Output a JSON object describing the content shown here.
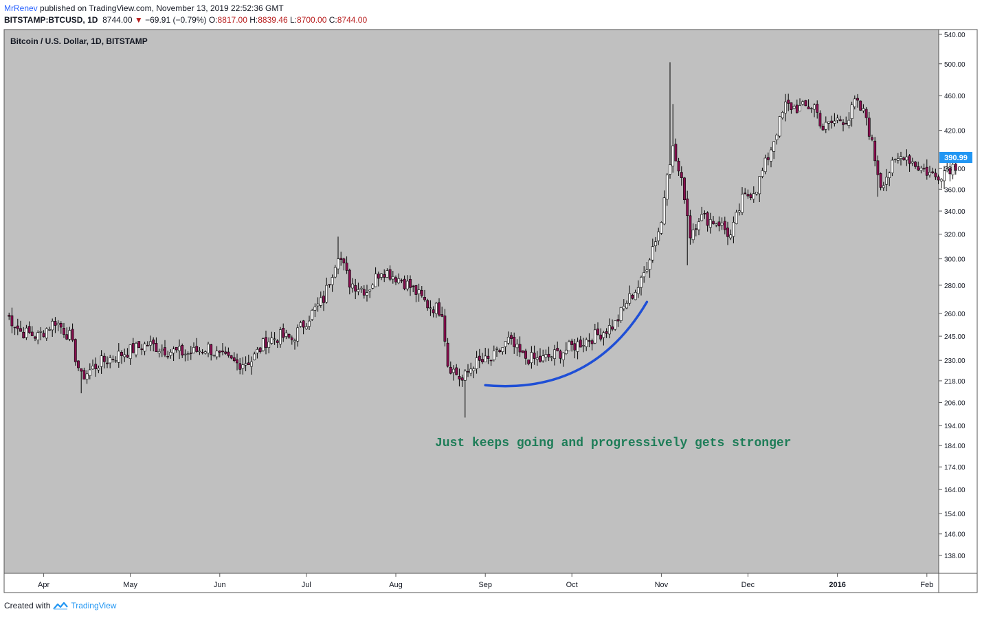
{
  "header": {
    "author": "MrRenev",
    "published_text": "published on TradingView.com, November 13, 2019 22:52:36 GMT",
    "symbol": "BITSTAMP:BTCUSD, 1D",
    "last": "8744.00",
    "change": "−69.91 (−0.79%)",
    "o_label": "O:",
    "o_value": "8817.00",
    "h_label": "H:",
    "h_value": "8839.46",
    "l_label": "L:",
    "l_value": "8700.00",
    "c_label": "C:",
    "c_value": "8744.00"
  },
  "footer": {
    "created_with": "Created with",
    "brand": "TradingView"
  },
  "colors": {
    "background": "#c0c0c0",
    "up_candle": "#ffffff",
    "down_candle": "#880e4f",
    "wick": "#000000",
    "curve": "#1f4fd6",
    "annotation": "#1e7d58",
    "price_badge": "#2196f3"
  },
  "chart_data": {
    "type": "candlestick",
    "title": "Bitcoin / U.S. Dollar, 1D, BITSTAMP",
    "y_scale": "log",
    "ylim": [
      130,
      545
    ],
    "y_ticks": [
      "138.00",
      "146.00",
      "154.00",
      "164.00",
      "174.00",
      "184.00",
      "194.00",
      "206.00",
      "218.00",
      "230.00",
      "245.00",
      "260.00",
      "280.00",
      "300.00",
      "320.00",
      "340.00",
      "360.00",
      "380.00",
      "420.00",
      "460.00",
      "500.00",
      "540.00"
    ],
    "x_ticks": [
      {
        "label": "Apr",
        "date": "2015-04-01"
      },
      {
        "label": "May",
        "date": "2015-05-01"
      },
      {
        "label": "Jun",
        "date": "2015-06-01"
      },
      {
        "label": "Jul",
        "date": "2015-07-01"
      },
      {
        "label": "Aug",
        "date": "2015-08-01"
      },
      {
        "label": "Sep",
        "date": "2015-09-01"
      },
      {
        "label": "Oct",
        "date": "2015-10-01"
      },
      {
        "label": "Nov",
        "date": "2015-11-01"
      },
      {
        "label": "Dec",
        "date": "2015-12-01"
      },
      {
        "label": "2016",
        "date": "2016-01-01"
      },
      {
        "label": "Feb",
        "date": "2016-02-01"
      }
    ],
    "last_price_label": "390.99",
    "annotation": "Just keeps going and progressively gets stronger",
    "x_start_date": "2015-03-19",
    "close_path": [
      [
        "2015-03-19",
        260
      ],
      [
        "2015-03-24",
        248
      ],
      [
        "2015-03-30",
        245
      ],
      [
        "2015-04-05",
        255
      ],
      [
        "2015-04-10",
        245
      ],
      [
        "2015-04-14",
        220
      ],
      [
        "2015-04-20",
        228
      ],
      [
        "2015-04-25",
        232
      ],
      [
        "2015-05-01",
        236
      ],
      [
        "2015-05-07",
        240
      ],
      [
        "2015-05-14",
        236
      ],
      [
        "2015-05-21",
        234
      ],
      [
        "2015-05-28",
        238
      ],
      [
        "2015-06-01",
        232
      ],
      [
        "2015-06-07",
        228
      ],
      [
        "2015-06-12",
        230
      ],
      [
        "2015-06-17",
        242
      ],
      [
        "2015-06-22",
        245
      ],
      [
        "2015-06-26",
        243
      ],
      [
        "2015-07-02",
        258
      ],
      [
        "2015-07-07",
        270
      ],
      [
        "2015-07-12",
        305
      ],
      [
        "2015-07-16",
        282
      ],
      [
        "2015-07-22",
        276
      ],
      [
        "2015-07-27",
        292
      ],
      [
        "2015-08-03",
        284
      ],
      [
        "2015-08-07",
        277
      ],
      [
        "2015-08-12",
        266
      ],
      [
        "2015-08-17",
        262
      ],
      [
        "2015-08-19",
        228
      ],
      [
        "2015-08-24",
        218
      ],
      [
        "2015-08-28",
        228
      ],
      [
        "2015-09-03",
        230
      ],
      [
        "2015-09-09",
        242
      ],
      [
        "2015-09-14",
        232
      ],
      [
        "2015-09-20",
        230
      ],
      [
        "2015-09-26",
        234
      ],
      [
        "2015-10-03",
        240
      ],
      [
        "2015-10-10",
        246
      ],
      [
        "2015-10-16",
        253
      ],
      [
        "2015-10-20",
        268
      ],
      [
        "2015-10-25",
        282
      ],
      [
        "2015-10-29",
        310
      ],
      [
        "2015-11-01",
        330
      ],
      [
        "2015-11-03",
        380
      ],
      [
        "2015-11-05",
        400
      ],
      [
        "2015-11-09",
        355
      ],
      [
        "2015-11-11",
        320
      ],
      [
        "2015-11-14",
        335
      ],
      [
        "2015-11-21",
        330
      ],
      [
        "2015-11-25",
        318
      ],
      [
        "2015-11-29",
        350
      ],
      [
        "2015-12-04",
        362
      ],
      [
        "2015-12-08",
        392
      ],
      [
        "2015-12-11",
        420
      ],
      [
        "2015-12-14",
        448
      ],
      [
        "2015-12-19",
        445
      ],
      [
        "2015-12-24",
        448
      ],
      [
        "2015-12-27",
        422
      ],
      [
        "2016-01-01",
        432
      ],
      [
        "2016-01-05",
        433
      ],
      [
        "2016-01-07",
        452
      ],
      [
        "2016-01-11",
        435
      ],
      [
        "2016-01-14",
        390
      ],
      [
        "2016-01-16",
        365
      ],
      [
        "2016-01-20",
        382
      ],
      [
        "2016-01-24",
        395
      ],
      [
        "2016-01-29",
        382
      ],
      [
        "2016-02-04",
        372
      ],
      [
        "2016-02-08",
        380
      ],
      [
        "2016-02-11",
        384
      ]
    ],
    "notable_candles": [
      {
        "date": "2015-11-04",
        "high": 502
      },
      {
        "date": "2015-11-05",
        "high": 450
      },
      {
        "date": "2015-08-25",
        "low": 198
      },
      {
        "date": "2015-04-14",
        "low": 211
      },
      {
        "date": "2015-07-12",
        "high": 318
      },
      {
        "date": "2016-01-15",
        "low": 353
      },
      {
        "date": "2015-11-10",
        "low": 295
      }
    ]
  }
}
